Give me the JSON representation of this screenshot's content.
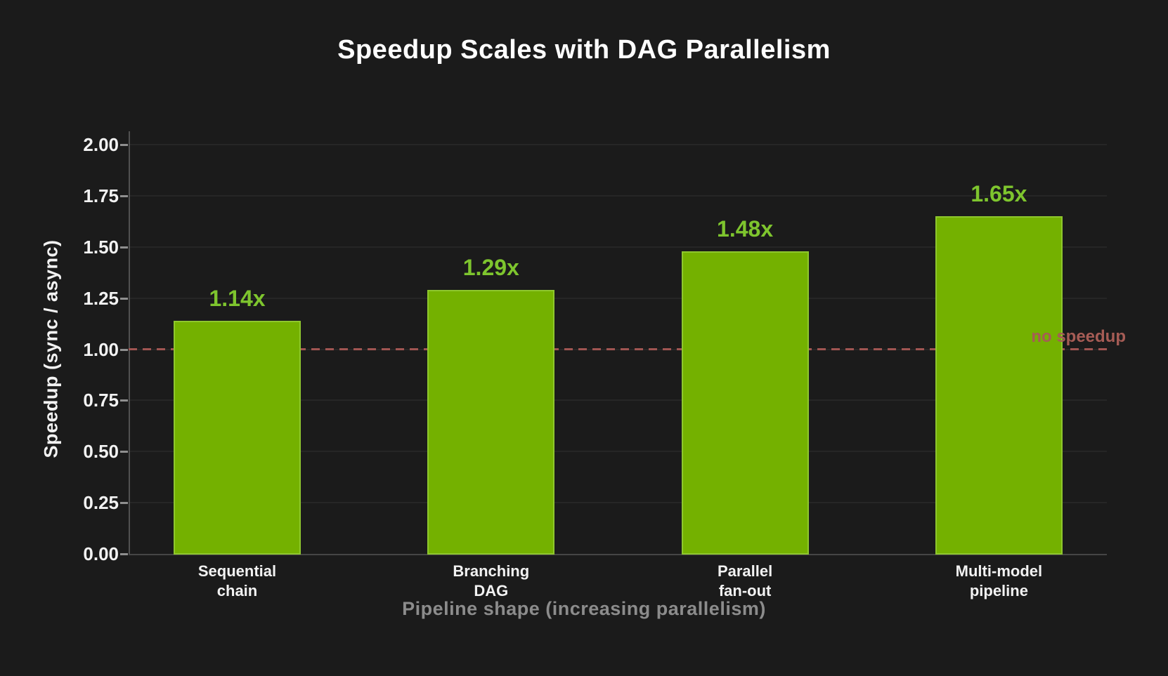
{
  "chart_data": {
    "type": "bar",
    "title": "Speedup Scales with DAG Parallelism",
    "categories": [
      "Sequential\nchain",
      "Branching\nDAG",
      "Parallel\nfan-out",
      "Multi-model\npipeline"
    ],
    "values": [
      1.14,
      1.29,
      1.48,
      1.65
    ],
    "bar_labels": [
      "1.14x",
      "1.29x",
      "1.48x",
      "1.65x"
    ],
    "xlabel": "Pipeline shape (increasing parallelism)",
    "ylabel": "Speedup (sync / async)",
    "ylim": [
      0.0,
      2.0
    ],
    "ytick_values": [
      0.0,
      0.25,
      0.5,
      0.75,
      1.0,
      1.25,
      1.5,
      1.75,
      2.0
    ],
    "ytick_labels": [
      "0.00",
      "0.25",
      "0.50",
      "0.75",
      "1.00",
      "1.25",
      "1.50",
      "1.75",
      "2.00"
    ],
    "grid": "horizontal",
    "legend": "none",
    "reference_line": {
      "value": 1.0,
      "label": "no speedup",
      "style": "dashed"
    },
    "colors": {
      "background": "#1b1b1b",
      "bar_fill": "#74b100",
      "bar_edge": "#8ec72d",
      "bar_label": "#7ec52e",
      "reference_line": "#a05552",
      "reference_label": "#a65c55",
      "grid": "#262626",
      "axis_spine": "#505050",
      "tick_label": "#f2f2f2",
      "xlabel": "#8c8c8c",
      "title": "#ffffff"
    }
  }
}
